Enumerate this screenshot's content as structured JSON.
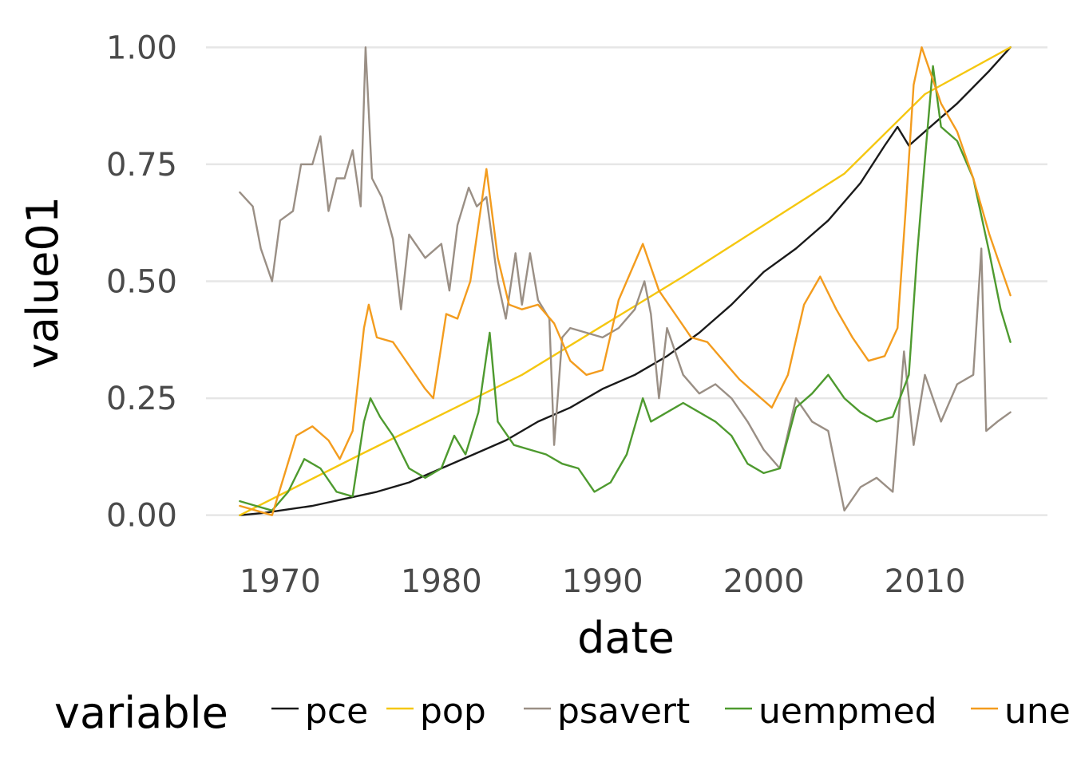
{
  "chart_data": {
    "type": "line",
    "xlabel": "date",
    "ylabel": "value01",
    "x_ticks": [
      "1970",
      "1980",
      "1990",
      "2000",
      "2010"
    ],
    "x_tick_values": [
      1970,
      1980,
      1990,
      2000,
      2010
    ],
    "y_ticks": [
      "0.00",
      "0.25",
      "0.50",
      "0.75",
      "1.00"
    ],
    "y_tick_values": [
      0,
      0.25,
      0.5,
      0.75,
      1.0
    ],
    "xlim": [
      1965.4,
      2017.6
    ],
    "ylim": [
      -0.05,
      1.05
    ],
    "grid": true,
    "legend": {
      "title": "variable",
      "position": "bottom"
    },
    "series": [
      {
        "name": "pce",
        "color": "#1a1a1a",
        "points": [
          [
            1967.5,
            0.0
          ],
          [
            1969,
            0.005
          ],
          [
            1970,
            0.01
          ],
          [
            1972,
            0.02
          ],
          [
            1974,
            0.035
          ],
          [
            1976,
            0.05
          ],
          [
            1978,
            0.07
          ],
          [
            1980,
            0.1
          ],
          [
            1982,
            0.13
          ],
          [
            1984,
            0.16
          ],
          [
            1986,
            0.2
          ],
          [
            1988,
            0.23
          ],
          [
            1990,
            0.27
          ],
          [
            1992,
            0.3
          ],
          [
            1994,
            0.34
          ],
          [
            1996,
            0.39
          ],
          [
            1998,
            0.45
          ],
          [
            2000,
            0.52
          ],
          [
            2002,
            0.57
          ],
          [
            2004,
            0.63
          ],
          [
            2006,
            0.71
          ],
          [
            2007.5,
            0.79
          ],
          [
            2008.3,
            0.83
          ],
          [
            2009,
            0.79
          ],
          [
            2010,
            0.82
          ],
          [
            2012,
            0.88
          ],
          [
            2014,
            0.95
          ],
          [
            2015.3,
            1.0
          ]
        ]
      },
      {
        "name": "pop",
        "color": "#f5c710",
        "points": [
          [
            1967.5,
            0.0
          ],
          [
            1975,
            0.13
          ],
          [
            1985,
            0.3
          ],
          [
            1995,
            0.51
          ],
          [
            2005,
            0.73
          ],
          [
            2010,
            0.9
          ],
          [
            2015.3,
            1.0
          ]
        ]
      },
      {
        "name": "psavert",
        "color": "#9a8f85",
        "points": [
          [
            1967.5,
            0.69
          ],
          [
            1968.3,
            0.66
          ],
          [
            1968.8,
            0.57
          ],
          [
            1969.5,
            0.5
          ],
          [
            1970,
            0.63
          ],
          [
            1970.8,
            0.65
          ],
          [
            1971.3,
            0.75
          ],
          [
            1972,
            0.75
          ],
          [
            1972.5,
            0.81
          ],
          [
            1973,
            0.65
          ],
          [
            1973.5,
            0.72
          ],
          [
            1974,
            0.72
          ],
          [
            1974.5,
            0.78
          ],
          [
            1975,
            0.66
          ],
          [
            1975.3,
            1.0
          ],
          [
            1975.7,
            0.72
          ],
          [
            1976.3,
            0.68
          ],
          [
            1977,
            0.59
          ],
          [
            1977.5,
            0.44
          ],
          [
            1978,
            0.6
          ],
          [
            1979,
            0.55
          ],
          [
            1980,
            0.58
          ],
          [
            1980.5,
            0.48
          ],
          [
            1981,
            0.62
          ],
          [
            1981.7,
            0.7
          ],
          [
            1982.2,
            0.66
          ],
          [
            1982.8,
            0.68
          ],
          [
            1983.5,
            0.5
          ],
          [
            1984,
            0.42
          ],
          [
            1984.6,
            0.56
          ],
          [
            1985,
            0.45
          ],
          [
            1985.5,
            0.56
          ],
          [
            1986,
            0.46
          ],
          [
            1986.7,
            0.42
          ],
          [
            1987,
            0.15
          ],
          [
            1987.5,
            0.38
          ],
          [
            1988,
            0.4
          ],
          [
            1989,
            0.39
          ],
          [
            1990,
            0.38
          ],
          [
            1991,
            0.4
          ],
          [
            1992,
            0.44
          ],
          [
            1992.6,
            0.5
          ],
          [
            1993,
            0.43
          ],
          [
            1993.5,
            0.25
          ],
          [
            1994,
            0.4
          ],
          [
            1995,
            0.3
          ],
          [
            1996,
            0.26
          ],
          [
            1997,
            0.28
          ],
          [
            1998,
            0.25
          ],
          [
            1999,
            0.2
          ],
          [
            2000,
            0.14
          ],
          [
            2001,
            0.1
          ],
          [
            2002,
            0.25
          ],
          [
            2003,
            0.2
          ],
          [
            2004,
            0.18
          ],
          [
            2005,
            0.01
          ],
          [
            2006,
            0.06
          ],
          [
            2007,
            0.08
          ],
          [
            2008,
            0.05
          ],
          [
            2008.7,
            0.35
          ],
          [
            2009.3,
            0.15
          ],
          [
            2010,
            0.3
          ],
          [
            2011,
            0.2
          ],
          [
            2012,
            0.28
          ],
          [
            2013,
            0.3
          ],
          [
            2013.5,
            0.57
          ],
          [
            2013.8,
            0.18
          ],
          [
            2014.5,
            0.2
          ],
          [
            2015.3,
            0.22
          ]
        ]
      },
      {
        "name": "uempmed",
        "color": "#4e9a2f",
        "points": [
          [
            1967.5,
            0.03
          ],
          [
            1968.5,
            0.02
          ],
          [
            1969.5,
            0.01
          ],
          [
            1970.5,
            0.05
          ],
          [
            1971.5,
            0.12
          ],
          [
            1972.5,
            0.1
          ],
          [
            1973.5,
            0.05
          ],
          [
            1974.5,
            0.04
          ],
          [
            1975.2,
            0.2
          ],
          [
            1975.6,
            0.25
          ],
          [
            1976.2,
            0.21
          ],
          [
            1977,
            0.17
          ],
          [
            1978,
            0.1
          ],
          [
            1979,
            0.08
          ],
          [
            1980,
            0.1
          ],
          [
            1980.8,
            0.17
          ],
          [
            1981.5,
            0.13
          ],
          [
            1982.3,
            0.22
          ],
          [
            1983,
            0.39
          ],
          [
            1983.5,
            0.2
          ],
          [
            1984.5,
            0.15
          ],
          [
            1985.5,
            0.14
          ],
          [
            1986.5,
            0.13
          ],
          [
            1987.5,
            0.11
          ],
          [
            1988.5,
            0.1
          ],
          [
            1989.5,
            0.05
          ],
          [
            1990.5,
            0.07
          ],
          [
            1991.5,
            0.13
          ],
          [
            1992.5,
            0.25
          ],
          [
            1993,
            0.2
          ],
          [
            1994,
            0.22
          ],
          [
            1995,
            0.24
          ],
          [
            1996,
            0.22
          ],
          [
            1997,
            0.2
          ],
          [
            1998,
            0.17
          ],
          [
            1999,
            0.11
          ],
          [
            2000,
            0.09
          ],
          [
            2001,
            0.1
          ],
          [
            2002,
            0.23
          ],
          [
            2003,
            0.26
          ],
          [
            2004,
            0.3
          ],
          [
            2005,
            0.25
          ],
          [
            2006,
            0.22
          ],
          [
            2007,
            0.2
          ],
          [
            2008,
            0.21
          ],
          [
            2009,
            0.3
          ],
          [
            2009.5,
            0.55
          ],
          [
            2010,
            0.76
          ],
          [
            2010.5,
            0.96
          ],
          [
            2011,
            0.83
          ],
          [
            2012,
            0.8
          ],
          [
            2013,
            0.72
          ],
          [
            2014,
            0.56
          ],
          [
            2014.7,
            0.44
          ],
          [
            2015.3,
            0.37
          ]
        ]
      },
      {
        "name": "unemploy",
        "color": "#f39c1e",
        "points": [
          [
            1967.5,
            0.02
          ],
          [
            1968.5,
            0.01
          ],
          [
            1969.5,
            0.0
          ],
          [
            1970.3,
            0.09
          ],
          [
            1971,
            0.17
          ],
          [
            1972,
            0.19
          ],
          [
            1973,
            0.16
          ],
          [
            1973.7,
            0.12
          ],
          [
            1974.5,
            0.18
          ],
          [
            1975.2,
            0.4
          ],
          [
            1975.5,
            0.45
          ],
          [
            1976,
            0.38
          ],
          [
            1977,
            0.37
          ],
          [
            1978,
            0.32
          ],
          [
            1979,
            0.27
          ],
          [
            1979.5,
            0.25
          ],
          [
            1980.3,
            0.43
          ],
          [
            1981,
            0.42
          ],
          [
            1981.8,
            0.5
          ],
          [
            1982.8,
            0.74
          ],
          [
            1983.5,
            0.55
          ],
          [
            1984.2,
            0.45
          ],
          [
            1985,
            0.44
          ],
          [
            1986,
            0.45
          ],
          [
            1987,
            0.41
          ],
          [
            1988,
            0.33
          ],
          [
            1989,
            0.3
          ],
          [
            1990,
            0.31
          ],
          [
            1991,
            0.46
          ],
          [
            1992.5,
            0.58
          ],
          [
            1993.5,
            0.48
          ],
          [
            1994.5,
            0.43
          ],
          [
            1995.5,
            0.38
          ],
          [
            1996.5,
            0.37
          ],
          [
            1997.5,
            0.33
          ],
          [
            1998.5,
            0.29
          ],
          [
            1999.5,
            0.26
          ],
          [
            2000.5,
            0.23
          ],
          [
            2001.5,
            0.3
          ],
          [
            2002.5,
            0.45
          ],
          [
            2003.5,
            0.51
          ],
          [
            2004.5,
            0.44
          ],
          [
            2005.5,
            0.38
          ],
          [
            2006.5,
            0.33
          ],
          [
            2007.5,
            0.34
          ],
          [
            2008.3,
            0.4
          ],
          [
            2008.8,
            0.65
          ],
          [
            2009.3,
            0.92
          ],
          [
            2009.8,
            1.0
          ],
          [
            2010.3,
            0.95
          ],
          [
            2011,
            0.88
          ],
          [
            2012,
            0.82
          ],
          [
            2013,
            0.72
          ],
          [
            2014,
            0.6
          ],
          [
            2014.7,
            0.53
          ],
          [
            2015.3,
            0.47
          ]
        ]
      }
    ]
  }
}
